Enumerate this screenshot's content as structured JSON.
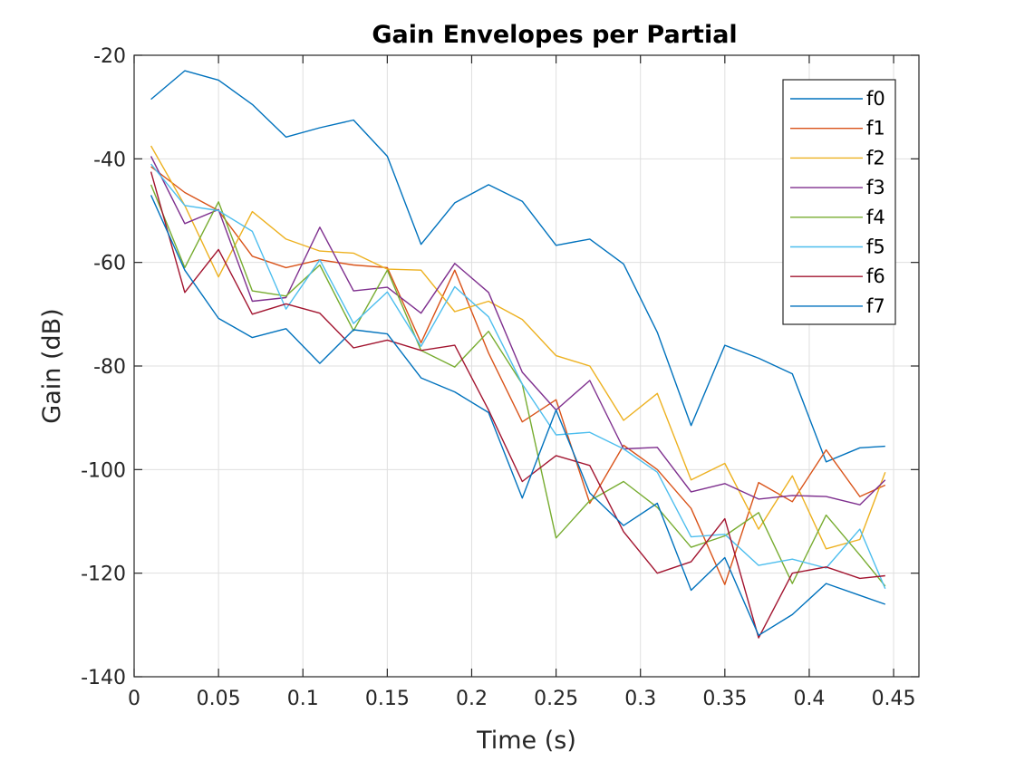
{
  "chart_data": {
    "type": "line",
    "title": "Gain Envelopes per Partial",
    "xlabel": "Time (s)",
    "ylabel": "Gain (dB)",
    "xlim": [
      0,
      0.465
    ],
    "ylim": [
      -140,
      -20
    ],
    "xticks": [
      0,
      0.05,
      0.1,
      0.15,
      0.2,
      0.25,
      0.3,
      0.35,
      0.4,
      0.45
    ],
    "xtick_labels": [
      "0",
      "0.05",
      "0.1",
      "0.15",
      "0.2",
      "0.25",
      "0.3",
      "0.35",
      "0.4",
      "0.45"
    ],
    "yticks": [
      -140,
      -120,
      -100,
      -80,
      -60,
      -40,
      -20
    ],
    "ytick_labels": [
      "-140",
      "-120",
      "-100",
      "-80",
      "-60",
      "-40",
      "-20"
    ],
    "grid": true,
    "legend_position": "top-right",
    "x": [
      0.01,
      0.03,
      0.05,
      0.07,
      0.09,
      0.11,
      0.13,
      0.15,
      0.17,
      0.19,
      0.21,
      0.23,
      0.25,
      0.27,
      0.29,
      0.31,
      0.33,
      0.35,
      0.37,
      0.39,
      0.41,
      0.43,
      0.445
    ],
    "series": [
      {
        "name": "f0",
        "color": "#0072BD",
        "values": [
          -28.5,
          -23,
          -24.8,
          -29.5,
          -35.8,
          -34,
          -32.5,
          -39.5,
          -56.5,
          -48.5,
          -45,
          -48.2,
          -56.7,
          -55.5,
          -60.3,
          -73.5,
          -91.5,
          -76,
          -78.5,
          -81.5,
          -98.5,
          -95.8,
          -95.5
        ]
      },
      {
        "name": "f1",
        "color": "#D95319",
        "values": [
          -41.5,
          -46.5,
          -50,
          -58.8,
          -61,
          -59.5,
          -60.5,
          -61,
          -75.5,
          -61.5,
          -77.5,
          -90.8,
          -86.5,
          -106.5,
          -95.3,
          -100,
          -107.5,
          -122.2,
          -102.5,
          -106.2,
          -96.2,
          -105.2,
          -103
        ]
      },
      {
        "name": "f2",
        "color": "#EDB120",
        "values": [
          -37.5,
          -49,
          -62.8,
          -50.2,
          -55.5,
          -57.8,
          -58.2,
          -61.3,
          -61.5,
          -69.5,
          -67.5,
          -71,
          -78,
          -80,
          -90.5,
          -85.3,
          -102,
          -98.8,
          -111.5,
          -101.2,
          -115.3,
          -113.5,
          -100.5
        ]
      },
      {
        "name": "f3",
        "color": "#7E2F8E",
        "values": [
          -39.5,
          -52.5,
          -49.8,
          -67.5,
          -66.8,
          -53.2,
          -65.5,
          -64.8,
          -69.8,
          -60.2,
          -65.8,
          -81.2,
          -88.5,
          -82.8,
          -96,
          -95.7,
          -104.3,
          -102.7,
          -105.7,
          -105,
          -105.2,
          -106.8,
          -102
        ]
      },
      {
        "name": "f4",
        "color": "#77AC30",
        "values": [
          -45,
          -61,
          -48.3,
          -65.5,
          -66.5,
          -60.5,
          -73.2,
          -61.5,
          -77,
          -80.2,
          -73.3,
          -83.5,
          -113.2,
          -106,
          -102.3,
          -107.3,
          -115,
          -112.8,
          -108.3,
          -122,
          -108.8,
          -116.5,
          -122.5
        ]
      },
      {
        "name": "f5",
        "color": "#4DBEEE",
        "values": [
          -41,
          -49,
          -50,
          -54,
          -69,
          -59.5,
          -71.8,
          -65.7,
          -76.2,
          -64.7,
          -70.5,
          -83.5,
          -93.3,
          -92.8,
          -96,
          -100.5,
          -113,
          -112.5,
          -118.5,
          -117.3,
          -119,
          -111.5,
          -123
        ]
      },
      {
        "name": "f6",
        "color": "#A2142F",
        "values": [
          -42.5,
          -65.8,
          -57.5,
          -70,
          -68,
          -69.8,
          -76.5,
          -75,
          -77,
          -76,
          -88.5,
          -102.3,
          -97.3,
          -99.2,
          -112,
          -120,
          -117.8,
          -109.5,
          -132.5,
          -120,
          -118.8,
          -121,
          -120.5
        ]
      },
      {
        "name": "f7",
        "color": "#0072BD",
        "values": [
          -47,
          -61.5,
          -70.8,
          -74.5,
          -72.8,
          -79.5,
          -73,
          -73.8,
          -82.3,
          -85,
          -89,
          -105.5,
          -88.5,
          -104.5,
          -110.8,
          -106.5,
          -123.3,
          -117,
          -132,
          -128,
          -122,
          -124.3,
          -126
        ]
      }
    ]
  }
}
